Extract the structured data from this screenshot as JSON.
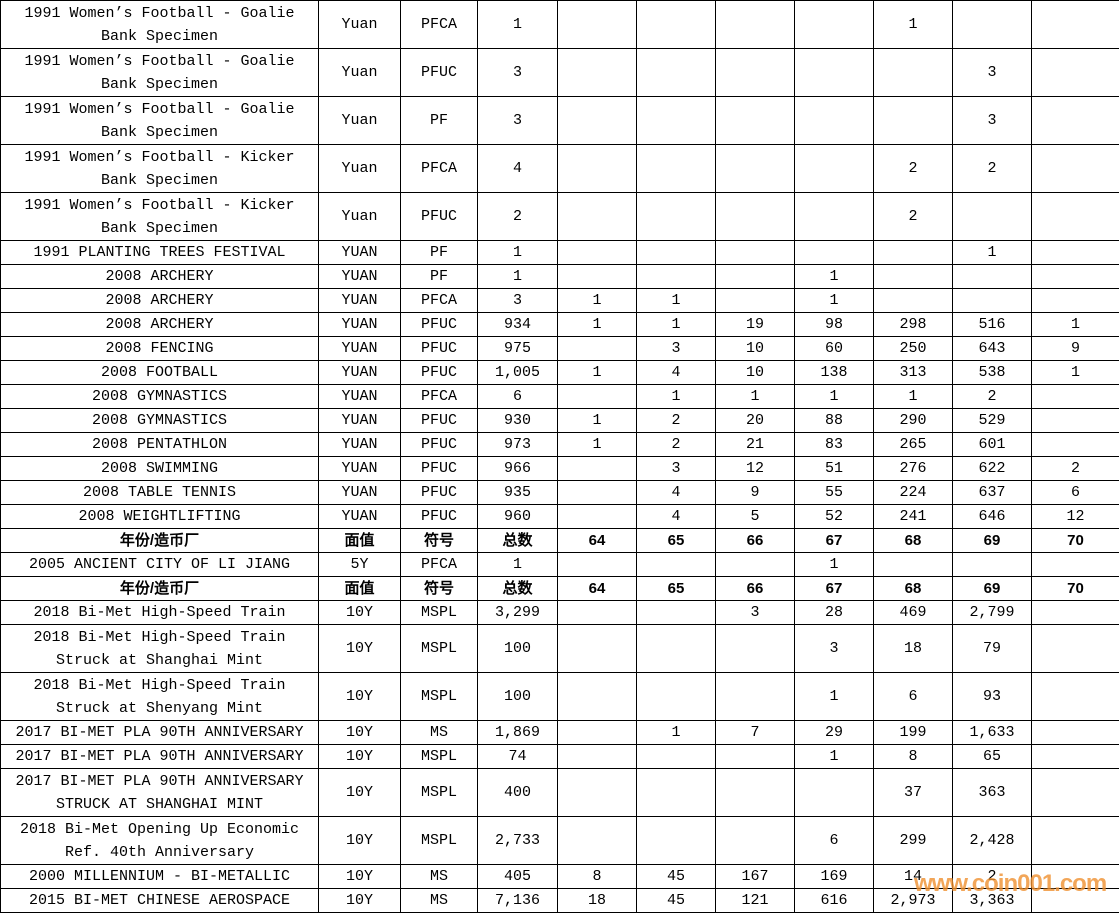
{
  "watermark": {
    "text": "www.coin001.com",
    "color": "#f09130"
  },
  "table": {
    "column_headers": [
      "年份/造币厂",
      "面值",
      "符号",
      "总数",
      "64",
      "65",
      "66",
      "67",
      "68",
      "69",
      "70"
    ],
    "rows": [
      {
        "type": "data",
        "cells": [
          "1991 Women’s Football - Goalie\nBank Specimen",
          "Yuan",
          "PFCA",
          "1",
          "",
          "",
          "",
          "",
          "1",
          "",
          ""
        ]
      },
      {
        "type": "data",
        "cells": [
          "1991 Women’s Football - Goalie\nBank Specimen",
          "Yuan",
          "PFUC",
          "3",
          "",
          "",
          "",
          "",
          "",
          "3",
          ""
        ]
      },
      {
        "type": "data",
        "cells": [
          "1991 Women’s Football - Goalie\nBank Specimen",
          "Yuan",
          "PF",
          "3",
          "",
          "",
          "",
          "",
          "",
          "3",
          ""
        ]
      },
      {
        "type": "data",
        "cells": [
          "1991 Women’s Football - Kicker\nBank Specimen",
          "Yuan",
          "PFCA",
          "4",
          "",
          "",
          "",
          "",
          "2",
          "2",
          ""
        ]
      },
      {
        "type": "data",
        "cells": [
          "1991 Women’s Football - Kicker\nBank Specimen",
          "Yuan",
          "PFUC",
          "2",
          "",
          "",
          "",
          "",
          "2",
          "",
          ""
        ]
      },
      {
        "type": "data",
        "cells": [
          "1991 PLANTING TREES FESTIVAL",
          "YUAN",
          "PF",
          "1",
          "",
          "",
          "",
          "",
          "",
          "1",
          ""
        ]
      },
      {
        "type": "data",
        "cells": [
          "2008 ARCHERY",
          "YUAN",
          "PF",
          "1",
          "",
          "",
          "",
          "1",
          "",
          "",
          ""
        ]
      },
      {
        "type": "data",
        "cells": [
          "2008 ARCHERY",
          "YUAN",
          "PFCA",
          "3",
          "1",
          "1",
          "",
          "1",
          "",
          "",
          ""
        ]
      },
      {
        "type": "data",
        "cells": [
          "2008 ARCHERY",
          "YUAN",
          "PFUC",
          "934",
          "1",
          "1",
          "19",
          "98",
          "298",
          "516",
          "1"
        ]
      },
      {
        "type": "data",
        "cells": [
          "2008 FENCING",
          "YUAN",
          "PFUC",
          "975",
          "",
          "3",
          "10",
          "60",
          "250",
          "643",
          "9"
        ]
      },
      {
        "type": "data",
        "cells": [
          "2008 FOOTBALL",
          "YUAN",
          "PFUC",
          "1,005",
          "1",
          "4",
          "10",
          "138",
          "313",
          "538",
          "1"
        ]
      },
      {
        "type": "data",
        "cells": [
          "2008 GYMNASTICS",
          "YUAN",
          "PFCA",
          "6",
          "",
          "1",
          "1",
          "1",
          "1",
          "2",
          ""
        ]
      },
      {
        "type": "data",
        "cells": [
          "2008 GYMNASTICS",
          "YUAN",
          "PFUC",
          "930",
          "1",
          "2",
          "20",
          "88",
          "290",
          "529",
          ""
        ]
      },
      {
        "type": "data",
        "cells": [
          "2008 PENTATHLON",
          "YUAN",
          "PFUC",
          "973",
          "1",
          "2",
          "21",
          "83",
          "265",
          "601",
          ""
        ]
      },
      {
        "type": "data",
        "cells": [
          "2008 SWIMMING",
          "YUAN",
          "PFUC",
          "966",
          "",
          "3",
          "12",
          "51",
          "276",
          "622",
          "2"
        ]
      },
      {
        "type": "data",
        "cells": [
          "2008 TABLE TENNIS",
          "YUAN",
          "PFUC",
          "935",
          "",
          "4",
          "9",
          "55",
          "224",
          "637",
          "6"
        ]
      },
      {
        "type": "data",
        "cells": [
          "2008 WEIGHTLIFTING",
          "YUAN",
          "PFUC",
          "960",
          "",
          "4",
          "5",
          "52",
          "241",
          "646",
          "12"
        ]
      },
      {
        "type": "header",
        "cells": [
          "年份/造币厂",
          "面值",
          "符号",
          "总数",
          "64",
          "65",
          "66",
          "67",
          "68",
          "69",
          "70"
        ]
      },
      {
        "type": "data",
        "cells": [
          "2005 ANCIENT CITY OF LI JIANG",
          "5Y",
          "PFCA",
          "1",
          "",
          "",
          "",
          "1",
          "",
          "",
          ""
        ]
      },
      {
        "type": "header",
        "cells": [
          "年份/造币厂",
          "面值",
          "符号",
          "总数",
          "64",
          "65",
          "66",
          "67",
          "68",
          "69",
          "70"
        ]
      },
      {
        "type": "data",
        "cells": [
          "2018 Bi-Met High-Speed Train",
          "10Y",
          "MSPL",
          "3,299",
          "",
          "",
          "3",
          "28",
          "469",
          "2,799",
          ""
        ]
      },
      {
        "type": "data",
        "cells": [
          "2018 Bi-Met High-Speed Train\nStruck at Shanghai Mint",
          "10Y",
          "MSPL",
          "100",
          "",
          "",
          "",
          "3",
          "18",
          "79",
          ""
        ]
      },
      {
        "type": "data",
        "cells": [
          "2018 Bi-Met High-Speed Train\nStruck at Shenyang Mint",
          "10Y",
          "MSPL",
          "100",
          "",
          "",
          "",
          "1",
          "6",
          "93",
          ""
        ]
      },
      {
        "type": "data",
        "cells": [
          "2017 BI-MET PLA 90TH ANNIVERSARY",
          "10Y",
          "MS",
          "1,869",
          "",
          "1",
          "7",
          "29",
          "199",
          "1,633",
          ""
        ]
      },
      {
        "type": "data",
        "cells": [
          "2017 BI-MET PLA 90TH ANNIVERSARY",
          "10Y",
          "MSPL",
          "74",
          "",
          "",
          "",
          "1",
          "8",
          "65",
          ""
        ]
      },
      {
        "type": "data",
        "cells": [
          "2017 BI-MET PLA 90TH ANNIVERSARY\nSTRUCK AT SHANGHAI MINT",
          "10Y",
          "MSPL",
          "400",
          "",
          "",
          "",
          "",
          "37",
          "363",
          ""
        ]
      },
      {
        "type": "data",
        "cells": [
          "2018 Bi-Met Opening Up Economic\nRef. 40th Anniversary",
          "10Y",
          "MSPL",
          "2,733",
          "",
          "",
          "",
          "6",
          "299",
          "2,428",
          ""
        ]
      },
      {
        "type": "data",
        "cells": [
          "2000 MILLENNIUM - BI-METALLIC",
          "10Y",
          "MS",
          "405",
          "8",
          "45",
          "167",
          "169",
          "14",
          "2",
          ""
        ]
      },
      {
        "type": "data",
        "cells": [
          "2015 BI-MET CHINESE AEROSPACE",
          "10Y",
          "MS",
          "7,136",
          "18",
          "45",
          "121",
          "616",
          "2,973",
          "3,363",
          ""
        ]
      }
    ]
  }
}
